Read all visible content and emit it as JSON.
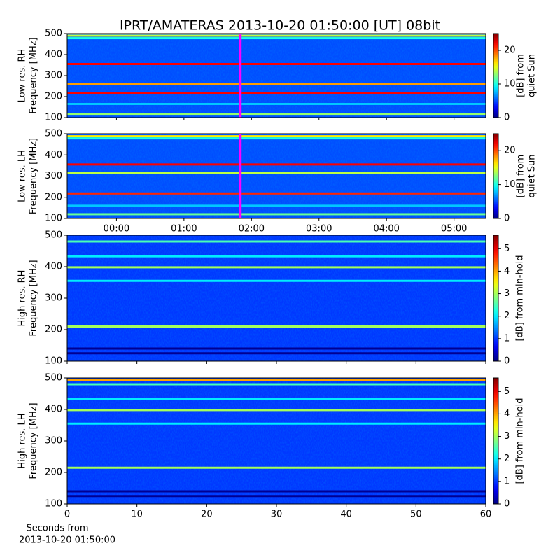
{
  "title": "IPRT/AMATERAS 2013-10-20 01:50:00 [UT]   08bit",
  "chart_data": [
    {
      "type": "spectrogram",
      "ylabel": [
        "Low res. RH",
        "Frequency [MHz]"
      ],
      "ylim": [
        100,
        500
      ],
      "yticks": [
        100,
        200,
        300,
        400,
        500
      ],
      "xlim": [
        -0.73,
        5.47
      ],
      "xticks": [
        0,
        1,
        2,
        3,
        4,
        5
      ],
      "colorbar_label": [
        "[dB] from",
        "quiet Sun"
      ],
      "clim": [
        0,
        25
      ],
      "cticks": [
        0,
        10,
        20
      ],
      "background_level": 5,
      "marker": 1.833,
      "marker_color": "#ff00ff",
      "bands": [
        {
          "freq": 490,
          "level": 14
        },
        {
          "freq": 478,
          "level": 10
        },
        {
          "freq": 355,
          "level": 22
        },
        {
          "freq": 260,
          "level": 18
        },
        {
          "freq": 215,
          "level": 22
        },
        {
          "freq": 165,
          "level": 8
        },
        {
          "freq": 118,
          "level": 13
        }
      ]
    },
    {
      "type": "spectrogram",
      "ylabel": [
        "Low res. LH",
        "Frequency [MHz]"
      ],
      "ylim": [
        100,
        500
      ],
      "yticks": [
        100,
        200,
        300,
        400,
        500
      ],
      "xlim": [
        -0.73,
        5.47
      ],
      "xticks": [
        {
          "value": 0,
          "label": "00:00"
        },
        {
          "value": 1,
          "label": "01:00"
        },
        {
          "value": 2,
          "label": "02:00"
        },
        {
          "value": 3,
          "label": "03:00"
        },
        {
          "value": 4,
          "label": "04:00"
        },
        {
          "value": 5,
          "label": "05:00"
        }
      ],
      "colorbar_label": [
        "[dB] from",
        "quiet Sun"
      ],
      "clim": [
        0,
        25
      ],
      "cticks": [
        0,
        10,
        20
      ],
      "background_level": 5,
      "marker": 1.833,
      "marker_color": "#ff00ff",
      "bands": [
        {
          "freq": 488,
          "level": 16
        },
        {
          "freq": 478,
          "level": 10
        },
        {
          "freq": 355,
          "level": 22
        },
        {
          "freq": 315,
          "level": 14
        },
        {
          "freq": 218,
          "level": 21
        },
        {
          "freq": 160,
          "level": 8
        },
        {
          "freq": 120,
          "level": 12
        }
      ]
    },
    {
      "type": "spectrogram",
      "ylabel": [
        "High res. RH",
        "Frequency [MHz]"
      ],
      "ylim": [
        100,
        500
      ],
      "yticks": [
        100,
        200,
        300,
        400,
        500
      ],
      "xlim": [
        0,
        60
      ],
      "xticks": [
        0,
        10,
        20,
        30,
        40,
        50,
        60
      ],
      "colorbar_label": [
        "[dB] from min-hold"
      ],
      "clim": [
        0,
        5.6
      ],
      "cticks": [
        0,
        1,
        2,
        3,
        4,
        5
      ],
      "background_level": 1,
      "bands": [
        {
          "freq": 480,
          "level": 2.5
        },
        {
          "freq": 433,
          "level": 2
        },
        {
          "freq": 398,
          "level": 3
        },
        {
          "freq": 355,
          "level": 2
        },
        {
          "freq": 210,
          "level": 3
        },
        {
          "freq": 140,
          "level": 0.1
        },
        {
          "freq": 125,
          "level": 0.1
        }
      ]
    },
    {
      "type": "spectrogram",
      "ylabel": [
        "High res. LH",
        "Frequency [MHz]"
      ],
      "ylim": [
        100,
        500
      ],
      "yticks": [
        100,
        200,
        300,
        400,
        500
      ],
      "xlim": [
        0,
        60
      ],
      "xticks": [
        0,
        10,
        20,
        30,
        40,
        50,
        60
      ],
      "xlabel": [
        "Seconds from",
        "2013-10-20 01:50:00"
      ],
      "colorbar_label": [
        "[dB] from min-hold"
      ],
      "clim": [
        0,
        5.6
      ],
      "cticks": [
        0,
        1,
        2,
        3,
        4,
        5
      ],
      "background_level": 1,
      "bands": [
        {
          "freq": 493,
          "level": 4
        },
        {
          "freq": 480,
          "level": 2.5
        },
        {
          "freq": 433,
          "level": 2
        },
        {
          "freq": 398,
          "level": 3
        },
        {
          "freq": 355,
          "level": 2
        },
        {
          "freq": 215,
          "level": 3
        },
        {
          "freq": 140,
          "level": 0.1
        },
        {
          "freq": 125,
          "level": 0.1
        }
      ]
    }
  ]
}
